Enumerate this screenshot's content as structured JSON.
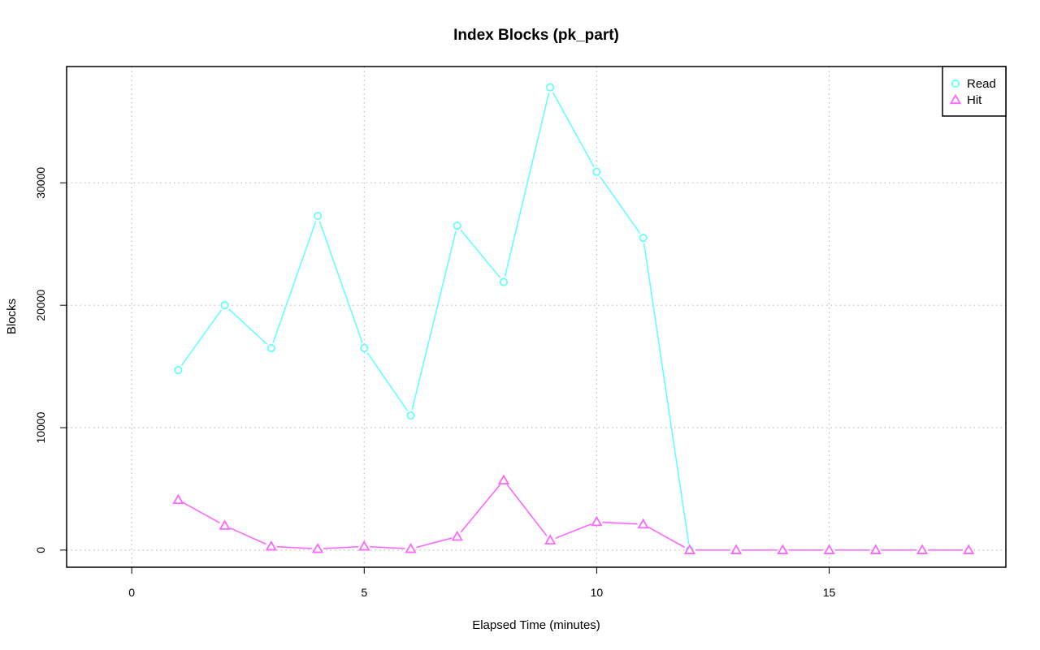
{
  "chart_data": {
    "type": "line",
    "title": "Index Blocks (pk_part)",
    "xlabel": "Elapsed Time (minutes)",
    "ylabel": "Blocks",
    "xlim": [
      -1.4,
      18.8
    ],
    "ylim": [
      -1400,
      39500
    ],
    "xticks": [
      0,
      5,
      10,
      15
    ],
    "yticks": [
      0,
      10000,
      20000,
      30000
    ],
    "x_tick_labels": [
      "0",
      "5",
      "10",
      "15"
    ],
    "y_tick_labels": [
      "0",
      "10000",
      "20000",
      "30000"
    ],
    "grid": true,
    "legend_position": "top-right",
    "x": [
      1,
      2,
      3,
      4,
      5,
      6,
      7,
      8,
      9,
      10,
      11,
      12,
      13,
      14,
      15,
      16,
      17,
      18
    ],
    "series": [
      {
        "name": "Read",
        "color": "#66ffff",
        "marker": "circle",
        "values": [
          14700,
          20000,
          16500,
          27300,
          16500,
          11000,
          26500,
          21900,
          37800,
          30900,
          25500,
          0,
          null,
          null,
          null,
          null,
          null,
          null
        ]
      },
      {
        "name": "Hit",
        "color": "#ff66ff",
        "marker": "triangle",
        "values": [
          4100,
          2000,
          300,
          100,
          300,
          100,
          1100,
          5700,
          800,
          2300,
          2100,
          0,
          0,
          0,
          0,
          0,
          0,
          0
        ]
      }
    ]
  }
}
